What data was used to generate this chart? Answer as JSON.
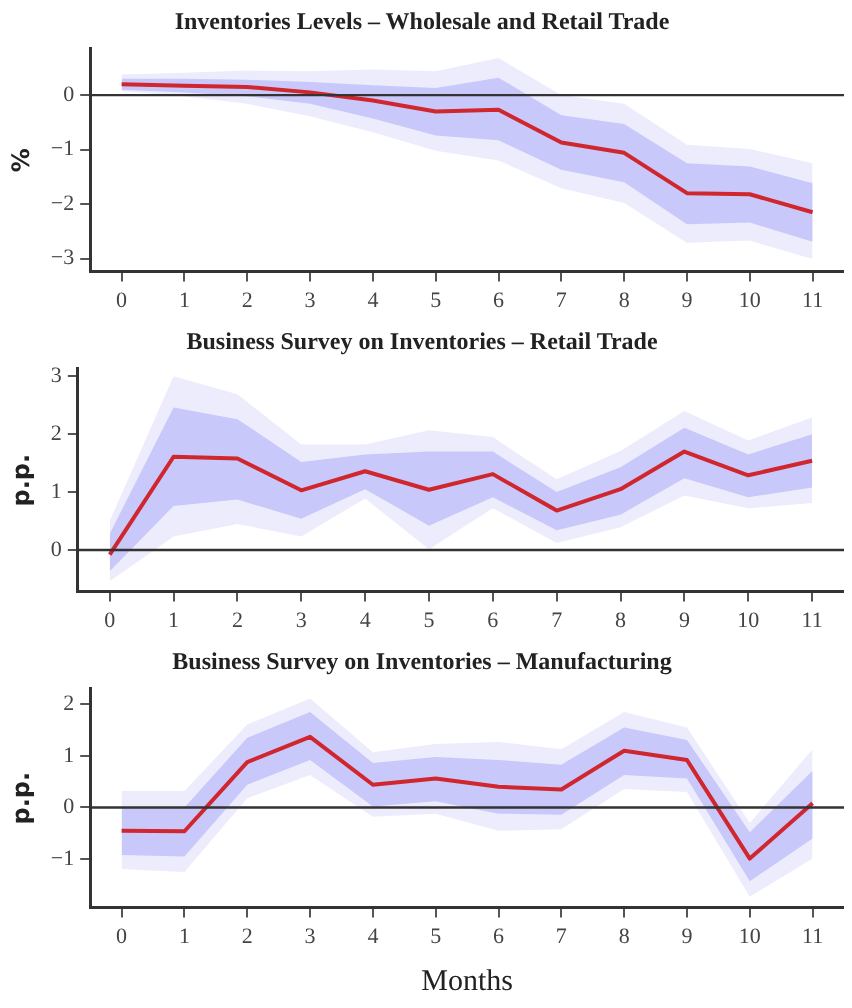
{
  "chart_data": [
    {
      "type": "line",
      "title": "Inventories Levels – Wholesale and Retail Trade",
      "ylabel": "%",
      "x": [
        0,
        1,
        2,
        3,
        4,
        5,
        6,
        7,
        8,
        9,
        10,
        11
      ],
      "xlim": [
        -0.5,
        11.5
      ],
      "xticks": [
        0,
        1,
        2,
        3,
        4,
        5,
        6,
        7,
        8,
        9,
        10,
        11
      ],
      "ylim": [
        -3.24,
        0.85
      ],
      "yticks": [
        -3,
        -2,
        -1,
        0
      ],
      "grid": false,
      "legend": false,
      "marker": "none",
      "ref_lines": [
        {
          "axis": "y",
          "value": 0,
          "color": "#333333"
        }
      ],
      "series": [
        {
          "color": "#ececfd",
          "values": [
            null,
            null,
            null,
            null,
            null,
            null,
            null,
            null,
            null,
            null,
            null,
            null
          ],
          "lower": [
            0.07,
            -0.02,
            -0.16,
            -0.39,
            -0.68,
            -1.02,
            -1.2,
            -1.71,
            -1.98,
            -2.71,
            -2.67,
            -3.01
          ],
          "upper": [
            0.38,
            0.41,
            0.45,
            0.44,
            0.47,
            0.44,
            0.68,
            0,
            -0.16,
            -0.91,
            -0.99,
            -1.25
          ]
        },
        {
          "color": "#c8c8fa",
          "values": [
            null,
            null,
            null,
            null,
            null,
            null,
            null,
            null,
            null,
            null,
            null,
            null
          ],
          "lower": [
            0.1,
            0.05,
            -0.02,
            -0.16,
            -0.43,
            -0.74,
            -0.83,
            -1.37,
            -1.6,
            -2.37,
            -2.34,
            -2.69
          ],
          "upper": [
            0.3,
            0.3,
            0.28,
            0.24,
            0.18,
            0.13,
            0.32,
            -0.37,
            -0.53,
            -1.25,
            -1.31,
            -1.62
          ]
        },
        {
          "color": "#d0262e",
          "values": [
            0.2,
            0.17,
            0.15,
            0.05,
            -0.1,
            -0.3,
            -0.27,
            -0.87,
            -1.06,
            -1.8,
            -1.82,
            -2.15
          ]
        }
      ]
    },
    {
      "type": "line",
      "title": "Business Survey on Inventories – Retail Trade",
      "ylabel": "p.p.",
      "x": [
        0,
        1,
        2,
        3,
        4,
        5,
        6,
        7,
        8,
        9,
        10,
        11
      ],
      "xlim": [
        -0.5,
        11.5
      ],
      "xticks": [
        0,
        1,
        2,
        3,
        4,
        5,
        6,
        7,
        8,
        9,
        10,
        11
      ],
      "ylim": [
        -0.72,
        3.13
      ],
      "yticks": [
        0,
        1,
        2,
        3
      ],
      "grid": false,
      "legend": false,
      "marker": "none",
      "ref_lines": [
        {
          "axis": "y",
          "value": 0,
          "color": "#333333"
        }
      ],
      "series": [
        {
          "color": "#ececfd",
          "values": [
            null,
            null,
            null,
            null,
            null,
            null,
            null,
            null,
            null,
            null,
            null,
            null
          ],
          "lower": [
            -0.54,
            0.23,
            0.45,
            0.23,
            0.89,
            0.01,
            0.72,
            0.12,
            0.39,
            0.94,
            0.72,
            0.81
          ],
          "upper": [
            0.5,
            3.0,
            2.69,
            1.82,
            1.82,
            2.07,
            1.95,
            1.22,
            1.71,
            2.4,
            1.89,
            2.29
          ]
        },
        {
          "color": "#c8c8fa",
          "values": [
            null,
            null,
            null,
            null,
            null,
            null,
            null,
            null,
            null,
            null,
            null,
            null
          ],
          "lower": [
            -0.37,
            0.76,
            0.87,
            0.54,
            1.05,
            0.42,
            0.91,
            0.34,
            0.61,
            1.24,
            0.91,
            1.08
          ],
          "upper": [
            0.28,
            2.46,
            2.26,
            1.52,
            1.65,
            1.7,
            1.7,
            1.0,
            1.43,
            2.11,
            1.65,
            2.0
          ]
        },
        {
          "color": "#d0262e",
          "values": [
            -0.08,
            1.61,
            1.58,
            1.03,
            1.36,
            1.04,
            1.31,
            0.68,
            1.05,
            1.7,
            1.29,
            1.54
          ]
        }
      ]
    },
    {
      "type": "line",
      "title": "Business Survey on Inventories – Manufacturing",
      "xlabel": "Months",
      "ylabel": "p.p.",
      "x": [
        0,
        1,
        2,
        3,
        4,
        5,
        6,
        7,
        8,
        9,
        10,
        11
      ],
      "xlim": [
        -0.5,
        11.5
      ],
      "xticks": [
        0,
        1,
        2,
        3,
        4,
        5,
        6,
        7,
        8,
        9,
        10,
        11
      ],
      "ylim": [
        -1.94,
        2.3
      ],
      "yticks": [
        -1,
        0,
        1,
        2
      ],
      "grid": false,
      "legend": false,
      "marker": "none",
      "ref_lines": [
        {
          "axis": "y",
          "value": 0,
          "color": "#333333"
        }
      ],
      "series": [
        {
          "color": "#ececfd",
          "values": [
            null,
            null,
            null,
            null,
            null,
            null,
            null,
            null,
            null,
            null,
            null,
            null
          ],
          "lower": [
            -1.19,
            -1.25,
            0.18,
            0.63,
            -0.18,
            -0.12,
            -0.45,
            -0.42,
            0.36,
            0.3,
            -1.73,
            -0.99
          ],
          "upper": [
            0.32,
            0.32,
            1.61,
            2.11,
            1.07,
            1.23,
            1.27,
            1.13,
            1.85,
            1.55,
            -0.3,
            1.13
          ]
        },
        {
          "color": "#c8c8fa",
          "values": [
            null,
            null,
            null,
            null,
            null,
            null,
            null,
            null,
            null,
            null,
            null,
            null
          ],
          "lower": [
            -0.92,
            -0.95,
            0.44,
            0.92,
            0.02,
            0.12,
            -0.12,
            -0.14,
            0.63,
            0.56,
            -1.43,
            -0.6
          ],
          "upper": [
            0,
            0,
            1.35,
            1.85,
            0.86,
            0.98,
            0.92,
            0.83,
            1.55,
            1.31,
            -0.48,
            0.71
          ]
        },
        {
          "color": "#d0262e",
          "values": [
            -0.45,
            -0.46,
            0.88,
            1.37,
            0.44,
            0.56,
            0.4,
            0.35,
            1.1,
            0.92,
            -0.99,
            0.08
          ]
        }
      ]
    }
  ]
}
